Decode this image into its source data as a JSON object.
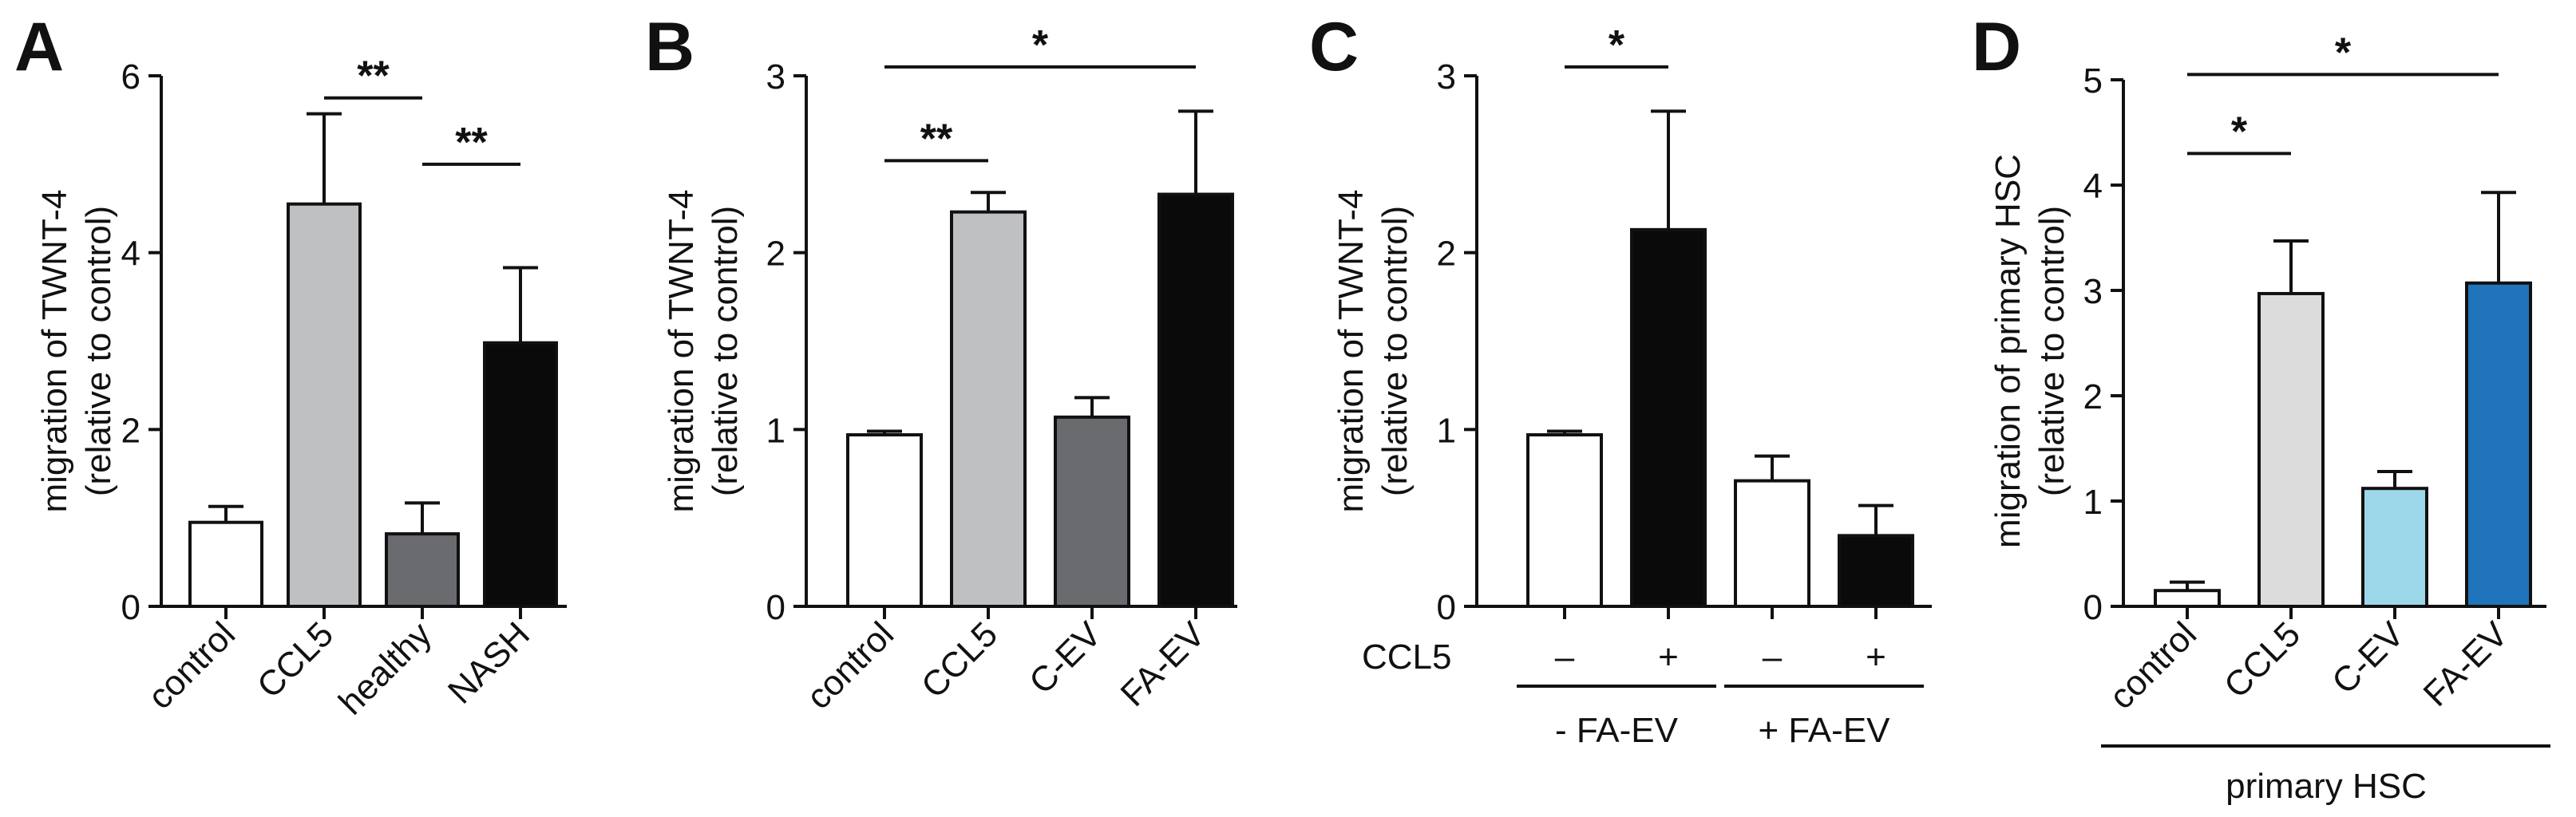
{
  "figure_letters": [
    "A",
    "B",
    "C",
    "D"
  ],
  "chart_data": [
    {
      "id": "A",
      "type": "bar",
      "ylabel_line1": "migration of TWNT-4",
      "ylabel_line2": "(relative to control)",
      "ylim": [
        0,
        6
      ],
      "yticks": [
        0,
        2,
        4,
        6
      ],
      "categories": [
        "control",
        "CCL5",
        "healthy",
        "NASH"
      ],
      "values": [
        0.95,
        4.55,
        0.82,
        2.98
      ],
      "errors": [
        0.18,
        1.02,
        0.35,
        0.85
      ],
      "colors": [
        "#ffffff",
        "#bfc0c2",
        "#6a6b6e",
        "#0a0a0a"
      ],
      "significance": [
        {
          "from": 1,
          "to": 2,
          "y": 5.75,
          "label": "**"
        },
        {
          "from": 2,
          "to": 3,
          "y": 5.0,
          "label": "**"
        }
      ]
    },
    {
      "id": "B",
      "type": "bar",
      "ylabel_line1": "migration of TWNT-4",
      "ylabel_line2": "(relative to control)",
      "ylim": [
        0,
        3
      ],
      "yticks": [
        0,
        1,
        2,
        3
      ],
      "categories": [
        "control",
        "CCL5",
        "C-EV",
        "FA-EV"
      ],
      "values": [
        0.97,
        2.23,
        1.07,
        2.33
      ],
      "errors": [
        0.02,
        0.11,
        0.11,
        0.47
      ],
      "colors": [
        "#ffffff",
        "#bfc0c2",
        "#6a6b6e",
        "#0a0a0a"
      ],
      "significance": [
        {
          "from": 0,
          "to": 1,
          "y": 2.52,
          "label": "**"
        },
        {
          "from": 0,
          "to": 3,
          "y": 3.05,
          "label": "*"
        }
      ]
    },
    {
      "id": "C",
      "type": "bar",
      "ylabel_line1": "migration of TWNT-4",
      "ylabel_line2": "(relative to control)",
      "ylim": [
        0,
        3
      ],
      "yticks": [
        0,
        1,
        2,
        3
      ],
      "categories": [
        "–",
        "+",
        "–",
        "+"
      ],
      "row_label": "CCL5",
      "groups": [
        {
          "label": "- FA-EV",
          "from": 0,
          "to": 1
        },
        {
          "label": "+ FA-EV",
          "from": 2,
          "to": 3
        }
      ],
      "values": [
        0.97,
        2.13,
        0.71,
        0.4
      ],
      "errors": [
        0.02,
        0.67,
        0.14,
        0.17
      ],
      "colors": [
        "#ffffff",
        "#0a0a0a",
        "#ffffff",
        "#0a0a0a"
      ],
      "significance": [
        {
          "from": 0,
          "to": 1,
          "y": 3.05,
          "label": "*"
        }
      ]
    },
    {
      "id": "D",
      "type": "bar",
      "ylabel_line1": "migration of primary HSC",
      "ylabel_line2": "(relative to control)",
      "ylim": [
        0,
        5
      ],
      "yticks": [
        0,
        1,
        2,
        3,
        4,
        5
      ],
      "categories": [
        "control",
        "CCL5",
        "C-EV",
        "FA-EV"
      ],
      "values": [
        0.15,
        2.97,
        1.12,
        3.07
      ],
      "errors": [
        0.08,
        0.5,
        0.16,
        0.86
      ],
      "colors": [
        "#ffffff",
        "#dcdcdc",
        "#9cd7ea",
        "#1f74bb"
      ],
      "group_label": "primary HSC",
      "significance": [
        {
          "from": 0,
          "to": 1,
          "y": 4.3,
          "label": "*"
        },
        {
          "from": 0,
          "to": 3,
          "y": 5.05,
          "label": "*"
        }
      ]
    }
  ]
}
